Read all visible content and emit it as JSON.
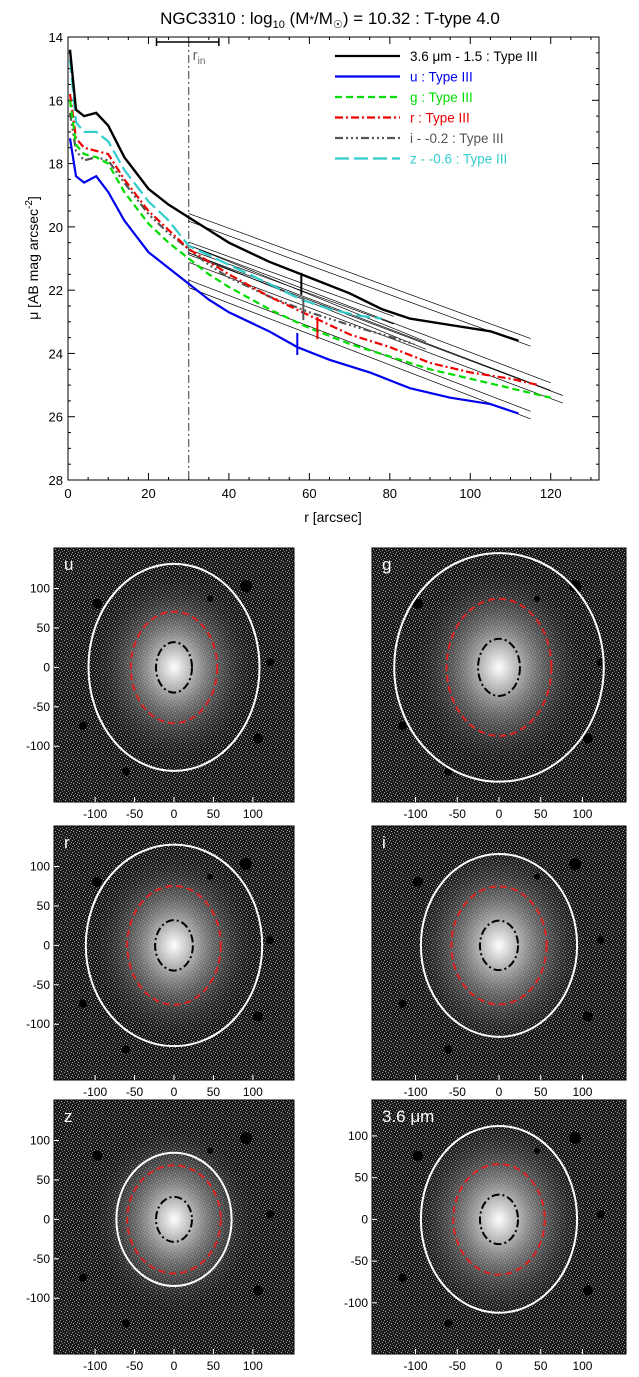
{
  "colors": {
    "ir": "#000000",
    "u": "#0000ee",
    "g": "#00dd00",
    "r": "#ee0000",
    "i": "#555555",
    "z": "#33cccc",
    "rin": "#666666",
    "outer_ellipse": "#ffffff",
    "inner_ellipse": "#dd2222",
    "core_ellipse": "#000000"
  },
  "chart_data": [
    {
      "type": "line",
      "title": {
        "prefix": "NGC3310 : log",
        "sub": "10",
        "mid1": " (M",
        "star": "*",
        "mid2": "/M",
        "sun": "☉",
        "suffix": ") = 10.32 : T-type 4.0"
      },
      "xlabel": "r [arcsec]",
      "ylabel": "μ [AB mag arcsec",
      "ylabel_sup": "-2",
      "ylabel_end": "]",
      "xlim": [
        0,
        132
      ],
      "ylim": [
        28,
        14
      ],
      "xticks": [
        "0",
        "20",
        "40",
        "60",
        "80",
        "100",
        "120"
      ],
      "xtick_values": [
        0,
        20,
        40,
        60,
        80,
        100,
        120
      ],
      "yticks": [
        "14",
        "16",
        "18",
        "20",
        "22",
        "24",
        "26",
        "28"
      ],
      "ytick_values": [
        14,
        16,
        18,
        20,
        22,
        24,
        26,
        28
      ],
      "rin": {
        "x": 30,
        "bar": [
          22,
          37.5
        ],
        "label": "r",
        "label_sub": "in"
      },
      "series": [
        {
          "name": "3.6 μm - 1.5 : Type III",
          "key": "ir",
          "dash": "",
          "x": [
            0.5,
            2,
            4,
            7,
            10,
            14,
            20,
            25,
            30,
            35,
            40,
            50,
            60,
            70,
            78,
            85,
            95,
            105,
            112
          ],
          "y": [
            14.4,
            16.3,
            16.5,
            16.4,
            16.8,
            17.8,
            18.8,
            19.3,
            19.7,
            20.1,
            20.5,
            21.1,
            21.6,
            22.1,
            22.6,
            22.9,
            23.1,
            23.3,
            23.6
          ]
        },
        {
          "name": "u : Type III",
          "key": "u",
          "dash": "",
          "x": [
            0.5,
            2,
            4,
            7,
            10,
            14,
            20,
            25,
            30,
            35,
            40,
            50,
            57,
            65,
            75,
            85,
            95,
            105,
            112
          ],
          "y": [
            17.2,
            18.4,
            18.6,
            18.4,
            18.9,
            19.8,
            20.8,
            21.3,
            21.8,
            22.3,
            22.7,
            23.3,
            23.8,
            24.2,
            24.6,
            25.1,
            25.4,
            25.6,
            25.9
          ]
        },
        {
          "name": "g : Type III",
          "key": "g",
          "dash": "7,4",
          "x": [
            0.5,
            2,
            4,
            7,
            10,
            14,
            20,
            25,
            30,
            35,
            40,
            50,
            60,
            70,
            80,
            90,
            100,
            110,
            120
          ],
          "y": [
            16.0,
            17.4,
            17.7,
            17.8,
            18.0,
            18.9,
            19.9,
            20.5,
            21.0,
            21.5,
            21.9,
            22.6,
            23.2,
            23.7,
            24.1,
            24.5,
            24.8,
            25.1,
            25.4
          ]
        },
        {
          "name": "r : Type III",
          "key": "r",
          "dash": "8,3,2,3",
          "x": [
            0.5,
            2,
            4,
            7,
            10,
            14,
            20,
            25,
            30,
            35,
            40,
            50,
            60,
            70,
            80,
            90,
            100,
            110,
            117
          ],
          "y": [
            15.8,
            17.2,
            17.5,
            17.6,
            17.7,
            18.5,
            19.5,
            20.1,
            20.7,
            21.1,
            21.5,
            22.2,
            22.8,
            23.4,
            23.8,
            24.3,
            24.6,
            24.8,
            25.0
          ]
        },
        {
          "name": "i - -0.2 : Type III",
          "key": "i",
          "dash": "8,3,2,3,2,3,2,3",
          "x": [
            0.5,
            2,
            4,
            7,
            10,
            14,
            20,
            25,
            30,
            35,
            40,
            50,
            60,
            70,
            78,
            86
          ],
          "y": [
            16.4,
            17.6,
            17.9,
            17.8,
            17.9,
            18.6,
            19.6,
            20.2,
            20.7,
            21.2,
            21.6,
            22.2,
            22.7,
            23.1,
            23.4,
            23.7
          ]
        },
        {
          "name": "z - -0.6 : Type III",
          "key": "z",
          "dash": "14,5",
          "x": [
            0.5,
            2,
            4,
            7,
            10,
            14,
            20,
            25,
            30,
            35,
            40,
            50,
            58,
            65,
            72,
            78
          ],
          "y": [
            14.7,
            16.7,
            17.0,
            17.0,
            17.3,
            18.2,
            19.2,
            19.8,
            20.6,
            20.9,
            21.2,
            21.8,
            22.3,
            22.6,
            22.8,
            22.9
          ]
        }
      ],
      "breaks": [
        {
          "key": "ir",
          "x": 58,
          "y": 21.8
        },
        {
          "key": "u",
          "x": 57,
          "y": 23.7
        },
        {
          "key": "i",
          "x": 58.5,
          "y": 22.6
        },
        {
          "key": "r",
          "x": 62,
          "y": 23.2
        }
      ]
    }
  ],
  "panels": [
    {
      "label": "u",
      "xticks": [
        "-100",
        "-50",
        "0",
        "50",
        "100"
      ],
      "yticks": [
        "100",
        "50",
        "0",
        "-50",
        "-100"
      ]
    },
    {
      "label": "g",
      "xticks": [
        "-100",
        "-50",
        "0",
        "50",
        "100"
      ],
      "yticks": []
    },
    {
      "label": "r",
      "xticks": [
        "-100",
        "-50",
        "0",
        "50",
        "100"
      ],
      "yticks": [
        "100",
        "50",
        "0",
        "-50",
        "-100"
      ]
    },
    {
      "label": "i",
      "xticks": [
        "-100",
        "-50",
        "0",
        "50",
        "100"
      ],
      "yticks": []
    },
    {
      "label": "z",
      "xticks": [
        "-100",
        "-50",
        "0",
        "50",
        "100"
      ],
      "yticks": [
        "100",
        "50",
        "0",
        "-50",
        "-100"
      ]
    },
    {
      "label": "3.6 μm",
      "xticks": [
        "-100",
        "-50",
        "0",
        "50",
        "100"
      ],
      "yticks": [
        "100",
        "50",
        "0",
        "-50",
        "-100"
      ]
    }
  ]
}
